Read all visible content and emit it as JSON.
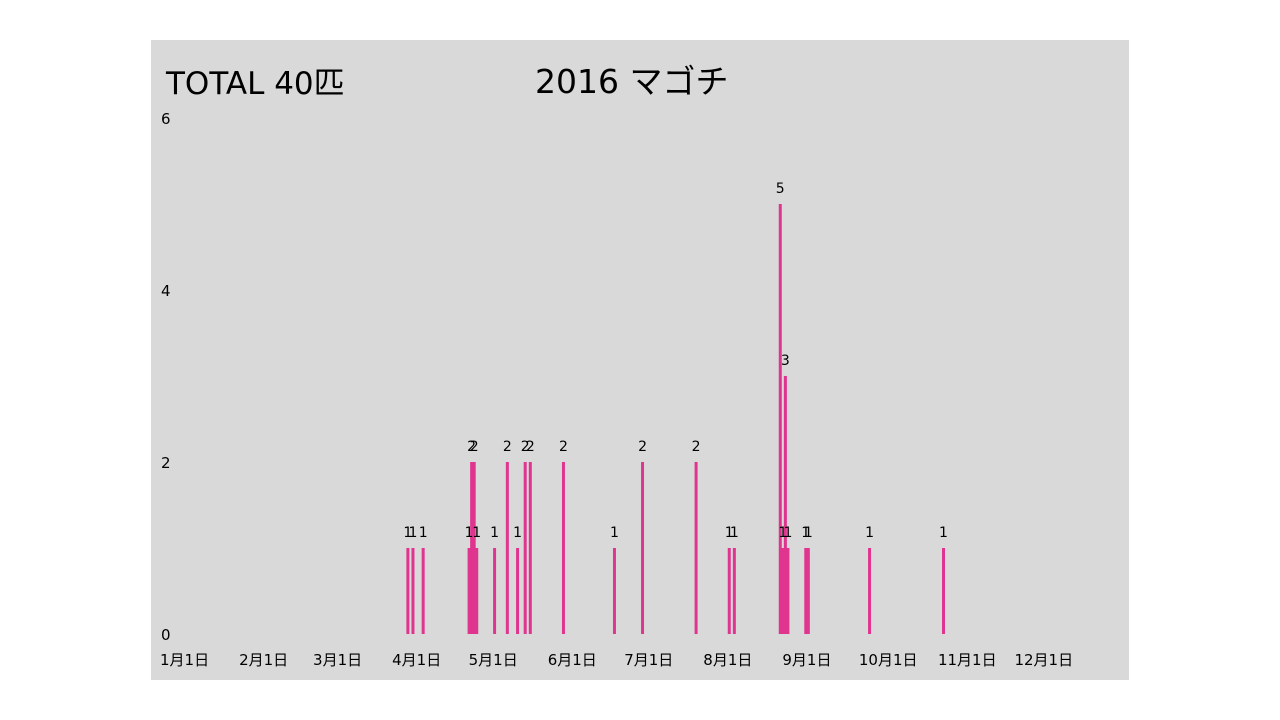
{
  "colors": {
    "panel_bg": "#d9d9d9",
    "bar": "#e0358f"
  },
  "chart_data": {
    "type": "bar",
    "title": "2016 マゴチ",
    "total_label": "TOTAL 40匹",
    "xlabel": "",
    "ylabel": "",
    "ylim": [
      0,
      6
    ],
    "y_ticks": [
      "0",
      "2",
      "4",
      "6"
    ],
    "x_domain": [
      "2016-01-01",
      "2016-12-31"
    ],
    "x_ticks": [
      {
        "date": "2016-01-01",
        "label": "1月1日"
      },
      {
        "date": "2016-02-01",
        "label": "2月1日"
      },
      {
        "date": "2016-03-01",
        "label": "3月1日"
      },
      {
        "date": "2016-04-01",
        "label": "4月1日"
      },
      {
        "date": "2016-05-01",
        "label": "5月1日"
      },
      {
        "date": "2016-06-01",
        "label": "6月1日"
      },
      {
        "date": "2016-07-01",
        "label": "7月1日"
      },
      {
        "date": "2016-08-01",
        "label": "8月1日"
      },
      {
        "date": "2016-09-01",
        "label": "9月1日"
      },
      {
        "date": "2016-10-01",
        "label": "10月1日"
      },
      {
        "date": "2016-11-01",
        "label": "11月1日"
      },
      {
        "date": "2016-12-01",
        "label": "12月1日"
      }
    ],
    "grid": false,
    "legend": "none",
    "points": [
      {
        "date": "2016-04-06",
        "value": 1
      },
      {
        "date": "2016-04-08",
        "value": 1
      },
      {
        "date": "2016-04-12",
        "value": 1
      },
      {
        "date": "2016-04-30",
        "value": 1
      },
      {
        "date": "2016-05-01",
        "value": 2
      },
      {
        "date": "2016-05-02",
        "value": 2
      },
      {
        "date": "2016-05-03",
        "value": 1
      },
      {
        "date": "2016-05-10",
        "value": 1
      },
      {
        "date": "2016-05-15",
        "value": 2
      },
      {
        "date": "2016-05-19",
        "value": 1
      },
      {
        "date": "2016-05-22",
        "value": 2
      },
      {
        "date": "2016-05-24",
        "value": 2
      },
      {
        "date": "2016-06-06",
        "value": 2
      },
      {
        "date": "2016-06-26",
        "value": 1
      },
      {
        "date": "2016-07-07",
        "value": 2
      },
      {
        "date": "2016-07-28",
        "value": 2
      },
      {
        "date": "2016-08-10",
        "value": 1
      },
      {
        "date": "2016-08-12",
        "value": 1
      },
      {
        "date": "2016-08-30",
        "value": 5
      },
      {
        "date": "2016-08-31",
        "value": 1
      },
      {
        "date": "2016-09-01",
        "value": 3
      },
      {
        "date": "2016-09-02",
        "value": 1
      },
      {
        "date": "2016-09-09",
        "value": 1
      },
      {
        "date": "2016-09-10",
        "value": 1
      },
      {
        "date": "2016-10-04",
        "value": 1
      },
      {
        "date": "2016-11-02",
        "value": 1
      }
    ]
  }
}
